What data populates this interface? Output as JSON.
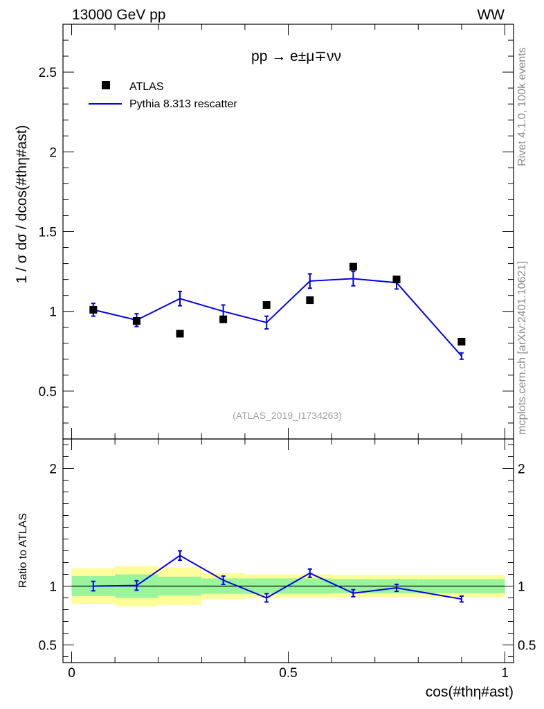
{
  "header": {
    "left": "13000 GeV pp",
    "right": "WW"
  },
  "side": {
    "events": "Rivet 4.1.0,  100k events",
    "source": "mcplots.cern.ch [arXiv:2401.10621]"
  },
  "chart_data": {
    "type": "scatter",
    "process": "pp → e±μ∓νν",
    "analysis": "(ATLAS_2019_I1734263)",
    "xlabel": "cos(#thη#ast)",
    "ylabel": "1 / σ  dσ / dcos(#thη#ast)",
    "ratio_ylabel": "Ratio to ATLAS",
    "xlim": [
      -0.02,
      1.02
    ],
    "ylim": [
      0.2,
      2.8
    ],
    "ratio_ylim": [
      0.35,
      2.25
    ],
    "x_ticks": [
      0,
      0.5,
      1
    ],
    "y_ticks": [
      0.5,
      1,
      1.5,
      2,
      2.5
    ],
    "ratio_ticks": [
      0.5,
      1,
      2
    ],
    "bins": [
      [
        0,
        0.1
      ],
      [
        0.1,
        0.2
      ],
      [
        0.2,
        0.3
      ],
      [
        0.3,
        0.4
      ],
      [
        0.4,
        0.5
      ],
      [
        0.5,
        0.6
      ],
      [
        0.6,
        0.7
      ],
      [
        0.7,
        0.8
      ],
      [
        0.8,
        1.0
      ]
    ],
    "legend": {
      "data_label": "ATLAS",
      "mc_label": "Pythia 8.313 rescatter",
      "position": "top-left"
    },
    "data": {
      "name": "ATLAS",
      "x": [
        0.05,
        0.15,
        0.25,
        0.35,
        0.45,
        0.55,
        0.65,
        0.75,
        0.9
      ],
      "y": [
        1.01,
        0.94,
        0.86,
        0.95,
        1.04,
        1.07,
        1.28,
        1.2,
        0.81
      ]
    },
    "mc": {
      "name": "Pythia 8.313 rescatter",
      "color": "#0000e6",
      "x": [
        0.05,
        0.15,
        0.25,
        0.35,
        0.45,
        0.55,
        0.65,
        0.75,
        0.9
      ],
      "y": [
        1.01,
        0.945,
        1.08,
        1.0,
        0.93,
        1.19,
        1.205,
        1.18,
        0.72
      ],
      "err": [
        0.04,
        0.04,
        0.045,
        0.04,
        0.04,
        0.045,
        0.045,
        0.04,
        0.02
      ]
    },
    "ratio": {
      "values": [
        1.0,
        1.005,
        1.26,
        1.05,
        0.9,
        1.11,
        0.94,
        0.985,
        0.89
      ],
      "err": [
        0.04,
        0.04,
        0.04,
        0.035,
        0.035,
        0.035,
        0.03,
        0.03,
        0.025
      ],
      "band_inner": [
        0.085,
        0.1,
        0.08,
        0.065,
        0.065,
        0.065,
        0.06,
        0.06,
        0.06
      ],
      "band_outer": [
        0.15,
        0.17,
        0.16,
        0.11,
        0.1,
        0.1,
        0.095,
        0.095,
        0.095
      ],
      "inner_color": "#99f599",
      "outer_color": "#fdfd99"
    }
  }
}
